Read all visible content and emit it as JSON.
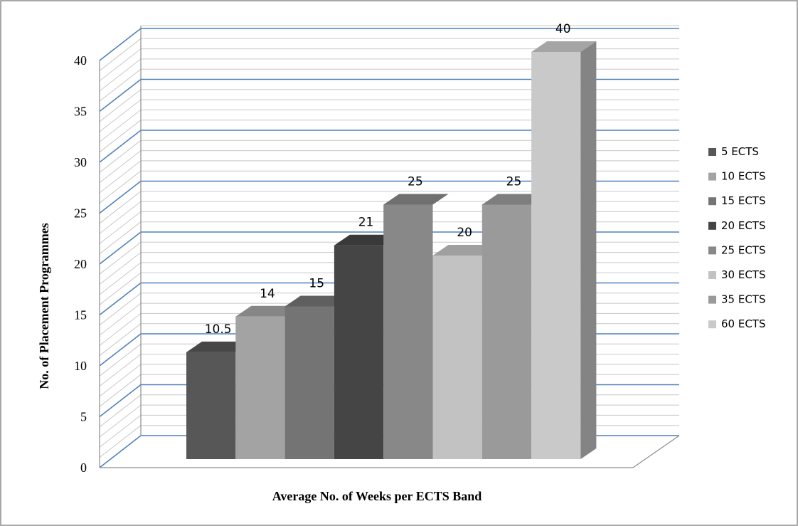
{
  "chart_data": {
    "type": "bar",
    "title": "",
    "xlabel": "Average No. of Weeks per ECTS Band",
    "ylabel": "No. of Placement Programmes",
    "ylim": [
      0,
      40
    ],
    "yticks": [
      0,
      5,
      10,
      15,
      20,
      25,
      30,
      35,
      40
    ],
    "grid": true,
    "legend_position": "right",
    "series": [
      {
        "name": "5 ECTS",
        "value": 10.5,
        "label": "10.5",
        "color": "#575757"
      },
      {
        "name": "10 ECTS",
        "value": 14,
        "label": "14",
        "color": "#a3a3a3"
      },
      {
        "name": "15 ECTS",
        "value": 15,
        "label": "15",
        "color": "#747474"
      },
      {
        "name": "20 ECTS",
        "value": 21,
        "label": "21",
        "color": "#454545"
      },
      {
        "name": "25 ECTS",
        "value": 25,
        "label": "25",
        "color": "#888888"
      },
      {
        "name": "30 ECTS",
        "value": 20,
        "label": "20",
        "color": "#c2c2c2"
      },
      {
        "name": "35 ECTS",
        "value": 25,
        "label": "25",
        "color": "#9a9a9a"
      },
      {
        "name": "60 ECTS",
        "value": 40,
        "label": "40",
        "color": "#c9c9c9"
      }
    ]
  }
}
